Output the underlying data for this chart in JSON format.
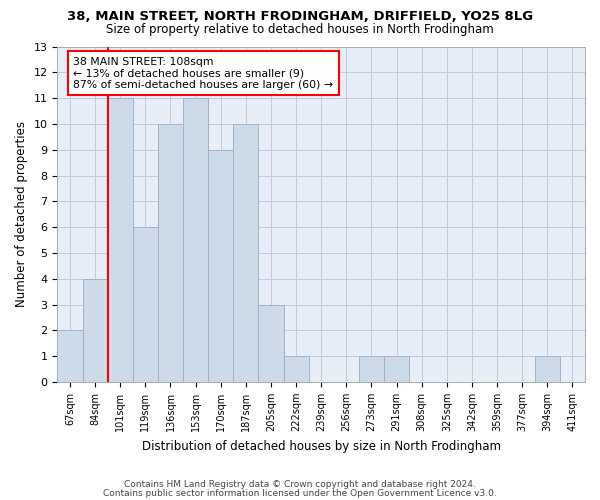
{
  "title1": "38, MAIN STREET, NORTH FRODINGHAM, DRIFFIELD, YO25 8LG",
  "title2": "Size of property relative to detached houses in North Frodingham",
  "xlabel": "Distribution of detached houses by size in North Frodingham",
  "ylabel": "Number of detached properties",
  "footer1": "Contains HM Land Registry data © Crown copyright and database right 2024.",
  "footer2": "Contains public sector information licensed under the Open Government Licence v3.0.",
  "bin_labels": [
    "67sqm",
    "84sqm",
    "101sqm",
    "119sqm",
    "136sqm",
    "153sqm",
    "170sqm",
    "187sqm",
    "205sqm",
    "222sqm",
    "239sqm",
    "256sqm",
    "273sqm",
    "291sqm",
    "308sqm",
    "325sqm",
    "342sqm",
    "359sqm",
    "377sqm",
    "394sqm",
    "411sqm"
  ],
  "bar_values": [
    2,
    4,
    11,
    6,
    10,
    11,
    9,
    10,
    3,
    1,
    0,
    0,
    1,
    1,
    0,
    0,
    0,
    0,
    0,
    1,
    0
  ],
  "bar_color": "#cddaea",
  "bar_edge_color": "#9ab4cc",
  "red_line_x": 1.5,
  "annotation_line1": "38 MAIN STREET: 108sqm",
  "annotation_line2": "← 13% of detached houses are smaller (9)",
  "annotation_line3": "87% of semi-detached houses are larger (60) →",
  "ylim": [
    0,
    13
  ],
  "yticks": [
    0,
    1,
    2,
    3,
    4,
    5,
    6,
    7,
    8,
    9,
    10,
    11,
    12,
    13
  ],
  "figure_bg": "#ffffff",
  "axes_bg": "#e8eef8",
  "grid_color": "#c0c8dc"
}
